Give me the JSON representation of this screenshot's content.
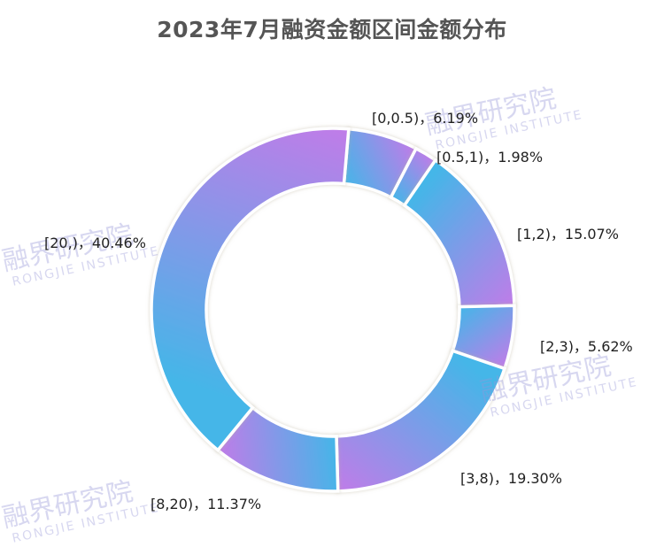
{
  "chart_data": {
    "type": "pie",
    "variant": "donut",
    "title": "2023年7月融资金额区间金额分布",
    "categories": [
      "[0,0.5)",
      "[0.5,1)",
      "[1,2)",
      "[2,3)",
      "[3,8)",
      "[8,20)",
      "[20,)"
    ],
    "values": [
      6.19,
      1.98,
      15.07,
      5.62,
      19.3,
      11.37,
      40.46
    ],
    "unit": "%",
    "labels": [
      "[0,0.5)，6.19%",
      "[0.5,1)，1.98%",
      "[1,2)，15.07%",
      "[2,3)，5.62%",
      "[3,8)，19.30%",
      "[8,20)，11.37%",
      "[20,)，40.46%"
    ],
    "legend": "none",
    "start_angle_deg": 5,
    "direction": "clockwise",
    "gradient": {
      "from": "#44b6e8",
      "to": "#c07ce8"
    }
  },
  "watermark": {
    "cn": "融界研究院",
    "en": "RONGJIE INSTITUTE"
  }
}
